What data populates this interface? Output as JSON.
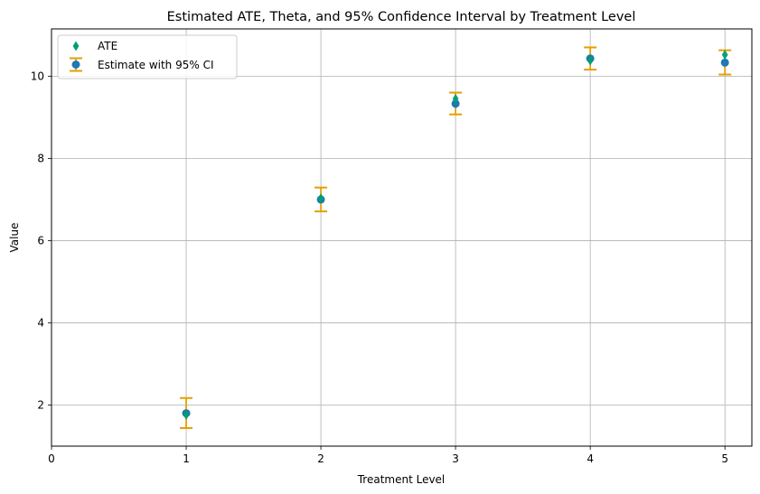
{
  "chart_data": {
    "type": "scatter",
    "title": "Estimated ATE, Theta, and 95% Confidence Interval by Treatment Level",
    "xlabel": "Treatment Level",
    "ylabel": "Value",
    "xlim": [
      0,
      5.2
    ],
    "ylim": [
      1.0,
      11.15
    ],
    "xticks": [
      0,
      1,
      2,
      3,
      4,
      5
    ],
    "yticks": [
      2,
      4,
      6,
      8,
      10
    ],
    "grid": true,
    "legend_position": "top-left",
    "x": [
      1,
      2,
      3,
      4,
      5
    ],
    "series": [
      {
        "name": "ATE",
        "marker": "thin_diamond",
        "color": "#009e73",
        "values": [
          1.76,
          7.03,
          9.45,
          10.38,
          10.52
        ]
      },
      {
        "name": "Estimate with 95% CI",
        "marker": "circle",
        "color": "#1f77b4",
        "errorbar_color": "#e69f00",
        "values": [
          1.8,
          7.0,
          9.33,
          10.43,
          10.33
        ],
        "ci_lower": [
          1.44,
          6.71,
          9.07,
          10.16,
          10.04
        ],
        "ci_upper": [
          2.17,
          7.29,
          9.6,
          10.7,
          10.63
        ]
      }
    ]
  }
}
